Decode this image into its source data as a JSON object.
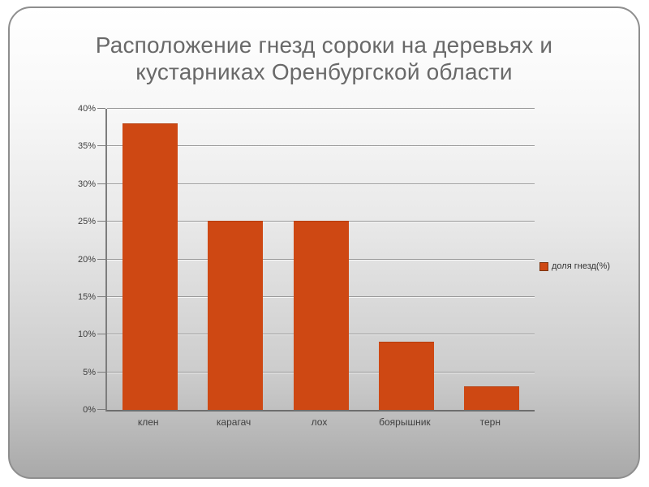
{
  "slide": {
    "title": "Расположение гнезд сороки на деревьях и кустарниках Оренбургской области"
  },
  "chart_data": {
    "type": "bar",
    "title": "Расположение гнезд сороки на деревьях и кустарниках Оренбургской области",
    "categories": [
      "клен",
      "карагач",
      "лох",
      "боярышник",
      "терн"
    ],
    "series": [
      {
        "name": "доля гнезд(%)",
        "values": [
          38,
          25,
          25,
          9,
          3
        ]
      }
    ],
    "xlabel": "",
    "ylabel": "",
    "ylim": [
      0,
      40
    ],
    "ytick_step": 5,
    "ytick_labels": [
      "0%",
      "5%",
      "10%",
      "15%",
      "20%",
      "25%",
      "30%",
      "35%",
      "40%"
    ],
    "grid": true,
    "legend_position": "right",
    "bar_color": "#ce4813"
  },
  "colors": {
    "bar": "#ce4813",
    "title_text": "#696969",
    "axis_text": "#3f3f3f",
    "gridline": "#979797",
    "card_border": "#8e8e8e",
    "card_bg_top": "#ffffff",
    "card_bg_bottom": "#a9a9a9"
  }
}
